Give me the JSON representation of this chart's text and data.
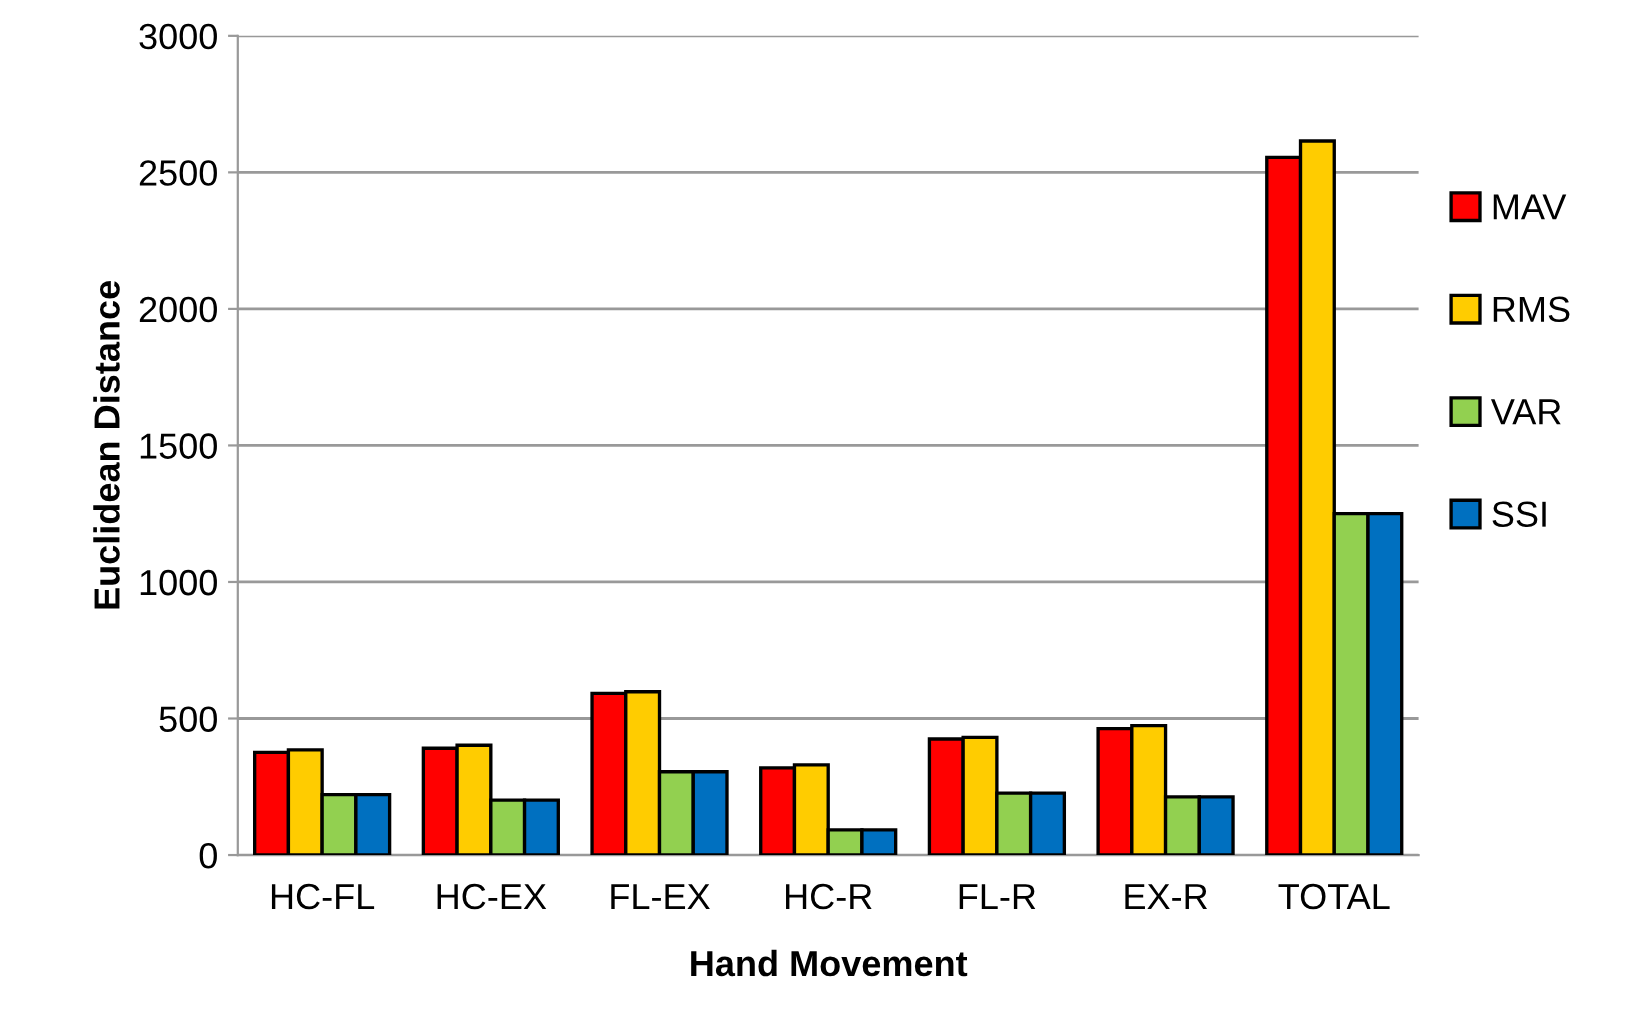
{
  "chart_data": {
    "type": "bar",
    "xlabel": "Hand Movement",
    "ylabel": "Euclidean Distance",
    "categories": [
      "HC-FL",
      "HC-EX",
      "FL-EX",
      "HC-R",
      "FL-R",
      "EX-R",
      "TOTAL"
    ],
    "series": [
      {
        "name": "MAV",
        "color": "#ff0000",
        "values": [
          376,
          391,
          592,
          319,
          425,
          463,
          2555
        ]
      },
      {
        "name": "RMS",
        "color": "#ffcc00",
        "values": [
          385,
          402,
          598,
          330,
          431,
          474,
          2615
        ]
      },
      {
        "name": "VAR",
        "color": "#92d050",
        "values": [
          221,
          201,
          305,
          92,
          227,
          213,
          1250
        ]
      },
      {
        "name": "SSI",
        "color": "#0070c0",
        "values": [
          221,
          201,
          305,
          92,
          227,
          213,
          1250
        ]
      }
    ],
    "ylim": [
      0,
      3000
    ],
    "yticks": [
      0,
      500,
      1000,
      1500,
      2000,
      2500,
      3000
    ],
    "grid": "y",
    "legend": "right"
  }
}
